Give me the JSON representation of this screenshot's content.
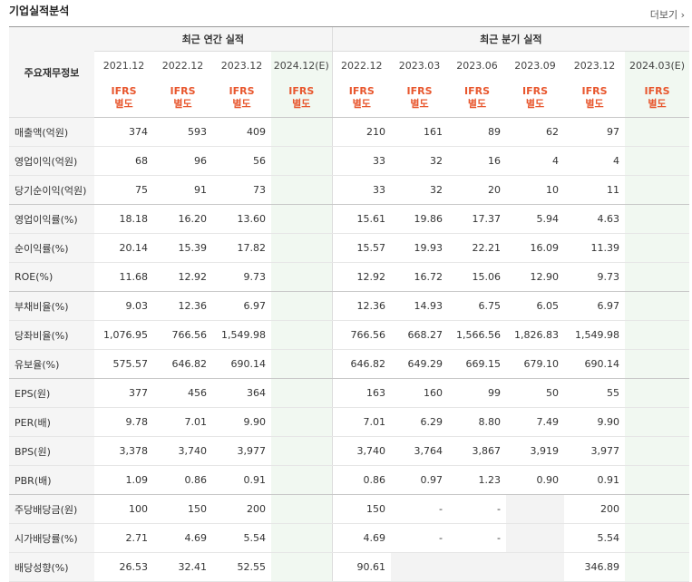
{
  "title": "기업실적분석",
  "more_label": "더보기",
  "row_header": "주요재무정보",
  "annual_group": "최근 연간 실적",
  "quarter_group": "최근 분기 실적",
  "annual_periods": [
    "2021.12",
    "2022.12",
    "2023.12",
    "2024.12(E)"
  ],
  "quarter_periods": [
    "2022.12",
    "2023.03",
    "2023.06",
    "2023.09",
    "2023.12",
    "2024.03(E)"
  ],
  "basis": "IFRS\n별도",
  "rows": [
    {
      "label": "매출액(억원)",
      "annual": [
        "374",
        "593",
        "409",
        ""
      ],
      "quarter": [
        "210",
        "161",
        "89",
        "62",
        "97",
        ""
      ]
    },
    {
      "label": "영업이익(억원)",
      "annual": [
        "68",
        "96",
        "56",
        ""
      ],
      "quarter": [
        "33",
        "32",
        "16",
        "4",
        "4",
        ""
      ]
    },
    {
      "label": "당기순이익(억원)",
      "annual": [
        "75",
        "91",
        "73",
        ""
      ],
      "quarter": [
        "33",
        "32",
        "20",
        "10",
        "11",
        ""
      ]
    },
    {
      "label": "영업이익률(%)",
      "annual": [
        "18.18",
        "16.20",
        "13.60",
        ""
      ],
      "quarter": [
        "15.61",
        "19.86",
        "17.37",
        "5.94",
        "4.63",
        ""
      ]
    },
    {
      "label": "순이익률(%)",
      "annual": [
        "20.14",
        "15.39",
        "17.82",
        ""
      ],
      "quarter": [
        "15.57",
        "19.93",
        "22.21",
        "16.09",
        "11.39",
        ""
      ]
    },
    {
      "label": "ROE(%)",
      "annual": [
        "11.68",
        "12.92",
        "9.73",
        ""
      ],
      "quarter": [
        "12.92",
        "16.72",
        "15.06",
        "12.90",
        "9.73",
        ""
      ]
    },
    {
      "label": "부채비율(%)",
      "annual": [
        "9.03",
        "12.36",
        "6.97",
        ""
      ],
      "quarter": [
        "12.36",
        "14.93",
        "6.75",
        "6.05",
        "6.97",
        ""
      ]
    },
    {
      "label": "당좌비율(%)",
      "annual": [
        "1,076.95",
        "766.56",
        "1,549.98",
        ""
      ],
      "quarter": [
        "766.56",
        "668.27",
        "1,566.56",
        "1,826.83",
        "1,549.98",
        ""
      ]
    },
    {
      "label": "유보율(%)",
      "annual": [
        "575.57",
        "646.82",
        "690.14",
        ""
      ],
      "quarter": [
        "646.82",
        "649.29",
        "669.15",
        "679.10",
        "690.14",
        ""
      ]
    },
    {
      "label": "EPS(원)",
      "annual": [
        "377",
        "456",
        "364",
        ""
      ],
      "quarter": [
        "163",
        "160",
        "99",
        "50",
        "55",
        ""
      ]
    },
    {
      "label": "PER(배)",
      "annual": [
        "9.78",
        "7.01",
        "9.90",
        ""
      ],
      "quarter": [
        "7.01",
        "6.29",
        "8.80",
        "7.49",
        "9.90",
        ""
      ]
    },
    {
      "label": "BPS(원)",
      "annual": [
        "3,378",
        "3,740",
        "3,977",
        ""
      ],
      "quarter": [
        "3,740",
        "3,764",
        "3,867",
        "3,919",
        "3,977",
        ""
      ]
    },
    {
      "label": "PBR(배)",
      "annual": [
        "1.09",
        "0.86",
        "0.91",
        ""
      ],
      "quarter": [
        "0.86",
        "0.97",
        "1.23",
        "0.90",
        "0.91",
        ""
      ]
    },
    {
      "label": "주당배당금(원)",
      "annual": [
        "100",
        "150",
        "200",
        ""
      ],
      "quarter": [
        "150",
        "-",
        "-",
        "",
        "200",
        ""
      ]
    },
    {
      "label": "시가배당률(%)",
      "annual": [
        "2.71",
        "4.69",
        "5.54",
        ""
      ],
      "quarter": [
        "4.69",
        "-",
        "-",
        "",
        "5.54",
        ""
      ]
    },
    {
      "label": "배당성향(%)",
      "annual": [
        "26.53",
        "32.41",
        "52.55",
        ""
      ],
      "quarter": [
        "90.61",
        "",
        "",
        "",
        "346.89",
        ""
      ]
    }
  ]
}
